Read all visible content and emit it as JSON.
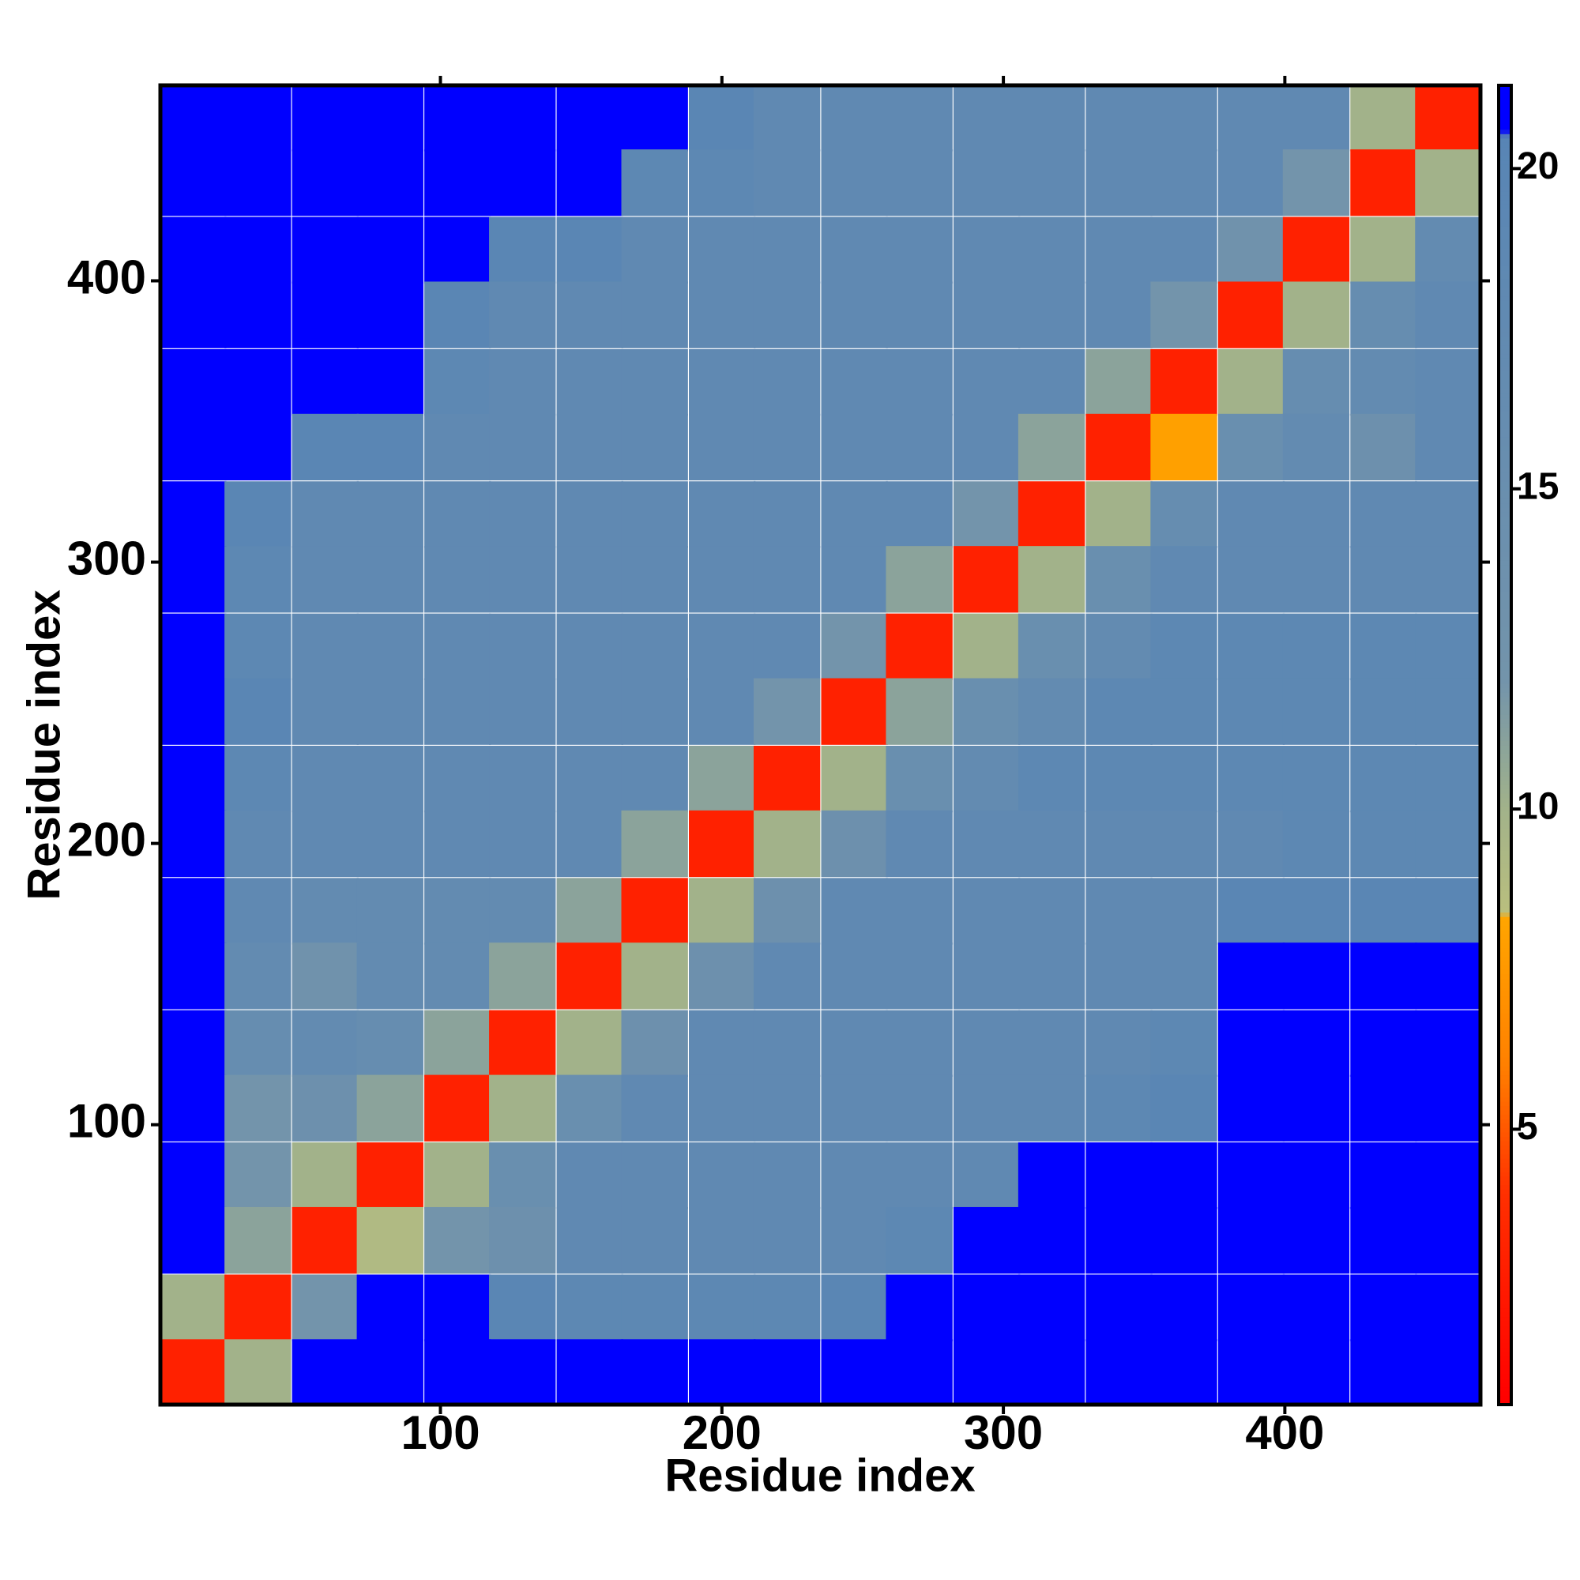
{
  "chart_data": {
    "type": "heatmap",
    "x_label": "Residue index",
    "y_label": "Residue index",
    "xlim": [
      0.5,
      469.5
    ],
    "ylim": [
      0.5,
      469.5
    ],
    "xticks": [
      100,
      200,
      300,
      400
    ],
    "yticks": [
      100,
      200,
      300,
      400
    ],
    "zlim": [
      0.7,
      21.3
    ],
    "colorbar_ticks": [
      5,
      10,
      15,
      20
    ],
    "colorscale": [
      [
        0.7,
        "#ff0000"
      ],
      [
        4,
        "#ff3000"
      ],
      [
        6,
        "#ff8000"
      ],
      [
        8.3,
        "#ffa500"
      ],
      [
        8.4,
        "#b9bf7e"
      ],
      [
        10,
        "#a2b28a"
      ],
      [
        12,
        "#7394ab"
      ],
      [
        20.5,
        "#5885b5"
      ],
      [
        20.6,
        "#0000ff"
      ],
      [
        21.3,
        "#0000ff"
      ]
    ],
    "x": [
      12,
      35,
      59,
      82,
      106,
      129,
      153,
      176,
      200,
      223,
      247,
      270,
      294,
      317,
      341,
      364,
      388,
      411,
      435,
      458
    ],
    "y": [
      458,
      435,
      411,
      388,
      364,
      341,
      317,
      294,
      270,
      247,
      223,
      200,
      176,
      153,
      129,
      106,
      82,
      59,
      35,
      12
    ],
    "z": [
      [
        21,
        21,
        21,
        21,
        21,
        21,
        21,
        21,
        20,
        18,
        18,
        18,
        18,
        18,
        18,
        18,
        18,
        18,
        10,
        3
      ],
      [
        21,
        21,
        21,
        21,
        21,
        21,
        21,
        19,
        19,
        18,
        18,
        18,
        18,
        18,
        18,
        18,
        18,
        12,
        3,
        10
      ],
      [
        21,
        21,
        21,
        21,
        21,
        20,
        20,
        18,
        18,
        18,
        18,
        18,
        18,
        18,
        18,
        18,
        13,
        3,
        10,
        17
      ],
      [
        21,
        21,
        21,
        21,
        20,
        18,
        18,
        18,
        18,
        18,
        18,
        18,
        18,
        18,
        18,
        12,
        3,
        10,
        16,
        18
      ],
      [
        21,
        21,
        21,
        21,
        19,
        18,
        18,
        18,
        18,
        18,
        18,
        18,
        18,
        18,
        11,
        3,
        10,
        16,
        17,
        18
      ],
      [
        21,
        21,
        20,
        20,
        18,
        18,
        18,
        18,
        18,
        18,
        18,
        18,
        18,
        11,
        3,
        8,
        15,
        17,
        14,
        18
      ],
      [
        21,
        20,
        18,
        18,
        18,
        18,
        18,
        18,
        18,
        18,
        18,
        18,
        12,
        3,
        10,
        16,
        18,
        18,
        18,
        18
      ],
      [
        21,
        19,
        18,
        18,
        18,
        18,
        18,
        18,
        18,
        18,
        18,
        11,
        3,
        10,
        15,
        18,
        18,
        18,
        18,
        18
      ],
      [
        21,
        19,
        18,
        18,
        18,
        18,
        18,
        18,
        18,
        18,
        12,
        3,
        10,
        15,
        17,
        19,
        19,
        19,
        19,
        19
      ],
      [
        21,
        20,
        18,
        18,
        18,
        18,
        18,
        18,
        18,
        12,
        3,
        11,
        15,
        17,
        19,
        19,
        19,
        19,
        19,
        19
      ],
      [
        21,
        19,
        18,
        18,
        18,
        18,
        18,
        18,
        11,
        3,
        10,
        15,
        17,
        19,
        19,
        19,
        19,
        19,
        19,
        19
      ],
      [
        21,
        18,
        18,
        18,
        18,
        18,
        18,
        11,
        3,
        10,
        14,
        18,
        18,
        18,
        18,
        18,
        18,
        19,
        19,
        19
      ],
      [
        21,
        18,
        17,
        17,
        17,
        17,
        11,
        3,
        10,
        14,
        18,
        18,
        18,
        18,
        18,
        18,
        20,
        20,
        20,
        20
      ],
      [
        21,
        17,
        13,
        17,
        17,
        11,
        3,
        10,
        14,
        18,
        18,
        18,
        18,
        18,
        18,
        18,
        21,
        21,
        21,
        21
      ],
      [
        21,
        16,
        17,
        16,
        11,
        3,
        10,
        14,
        18,
        18,
        18,
        18,
        18,
        18,
        18,
        19,
        21,
        21,
        21,
        21
      ],
      [
        21,
        12,
        14,
        11,
        3,
        10,
        15,
        18,
        18,
        18,
        18,
        18,
        18,
        18,
        19,
        20,
        21,
        21,
        21,
        21
      ],
      [
        21,
        12,
        10,
        3,
        10,
        15,
        18,
        18,
        18,
        18,
        18,
        18,
        18,
        21,
        21,
        21,
        21,
        21,
        21,
        21
      ],
      [
        21,
        11,
        3,
        9,
        12,
        14,
        18,
        18,
        18,
        18,
        18,
        19,
        21,
        21,
        21,
        21,
        21,
        21,
        21,
        21
      ],
      [
        10,
        3,
        12,
        21,
        21,
        20,
        19,
        19,
        19,
        19,
        20,
        21,
        21,
        21,
        21,
        21,
        21,
        21,
        21,
        21
      ],
      [
        3,
        10,
        21,
        21,
        21,
        21,
        21,
        21,
        21,
        21,
        21,
        21,
        21,
        21,
        21,
        21,
        21,
        21,
        21,
        21
      ]
    ]
  }
}
